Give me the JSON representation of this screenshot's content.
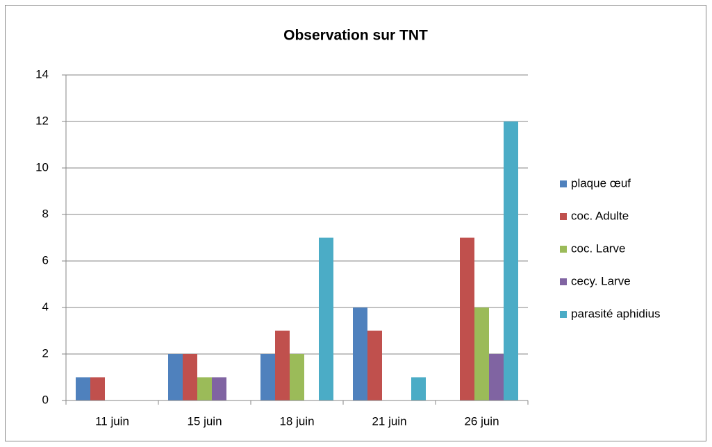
{
  "chart_data": {
    "type": "bar",
    "title": "Observation sur TNT",
    "categories": [
      "11 juin",
      "15 juin",
      "18 juin",
      "21 juin",
      "26 juin"
    ],
    "series": [
      {
        "name": "plaque œuf",
        "color": "#4f81bd",
        "values": [
          1,
          2,
          2,
          4,
          0
        ]
      },
      {
        "name": "coc. Adulte",
        "color": "#c0504d",
        "values": [
          1,
          2,
          3,
          3,
          7
        ]
      },
      {
        "name": "coc. Larve",
        "color": "#9bbb59",
        "values": [
          0,
          1,
          2,
          0,
          4
        ]
      },
      {
        "name": "cecy. Larve",
        "color": "#8064a2",
        "values": [
          0,
          1,
          0,
          0,
          2
        ]
      },
      {
        "name": "parasité aphidius",
        "color": "#4bacc6",
        "values": [
          0,
          0,
          7,
          1,
          12
        ]
      }
    ],
    "ylim": [
      0,
      14
    ],
    "yticks": [
      0,
      2,
      4,
      6,
      8,
      10,
      12,
      14
    ],
    "grid": true,
    "legend": "right"
  }
}
